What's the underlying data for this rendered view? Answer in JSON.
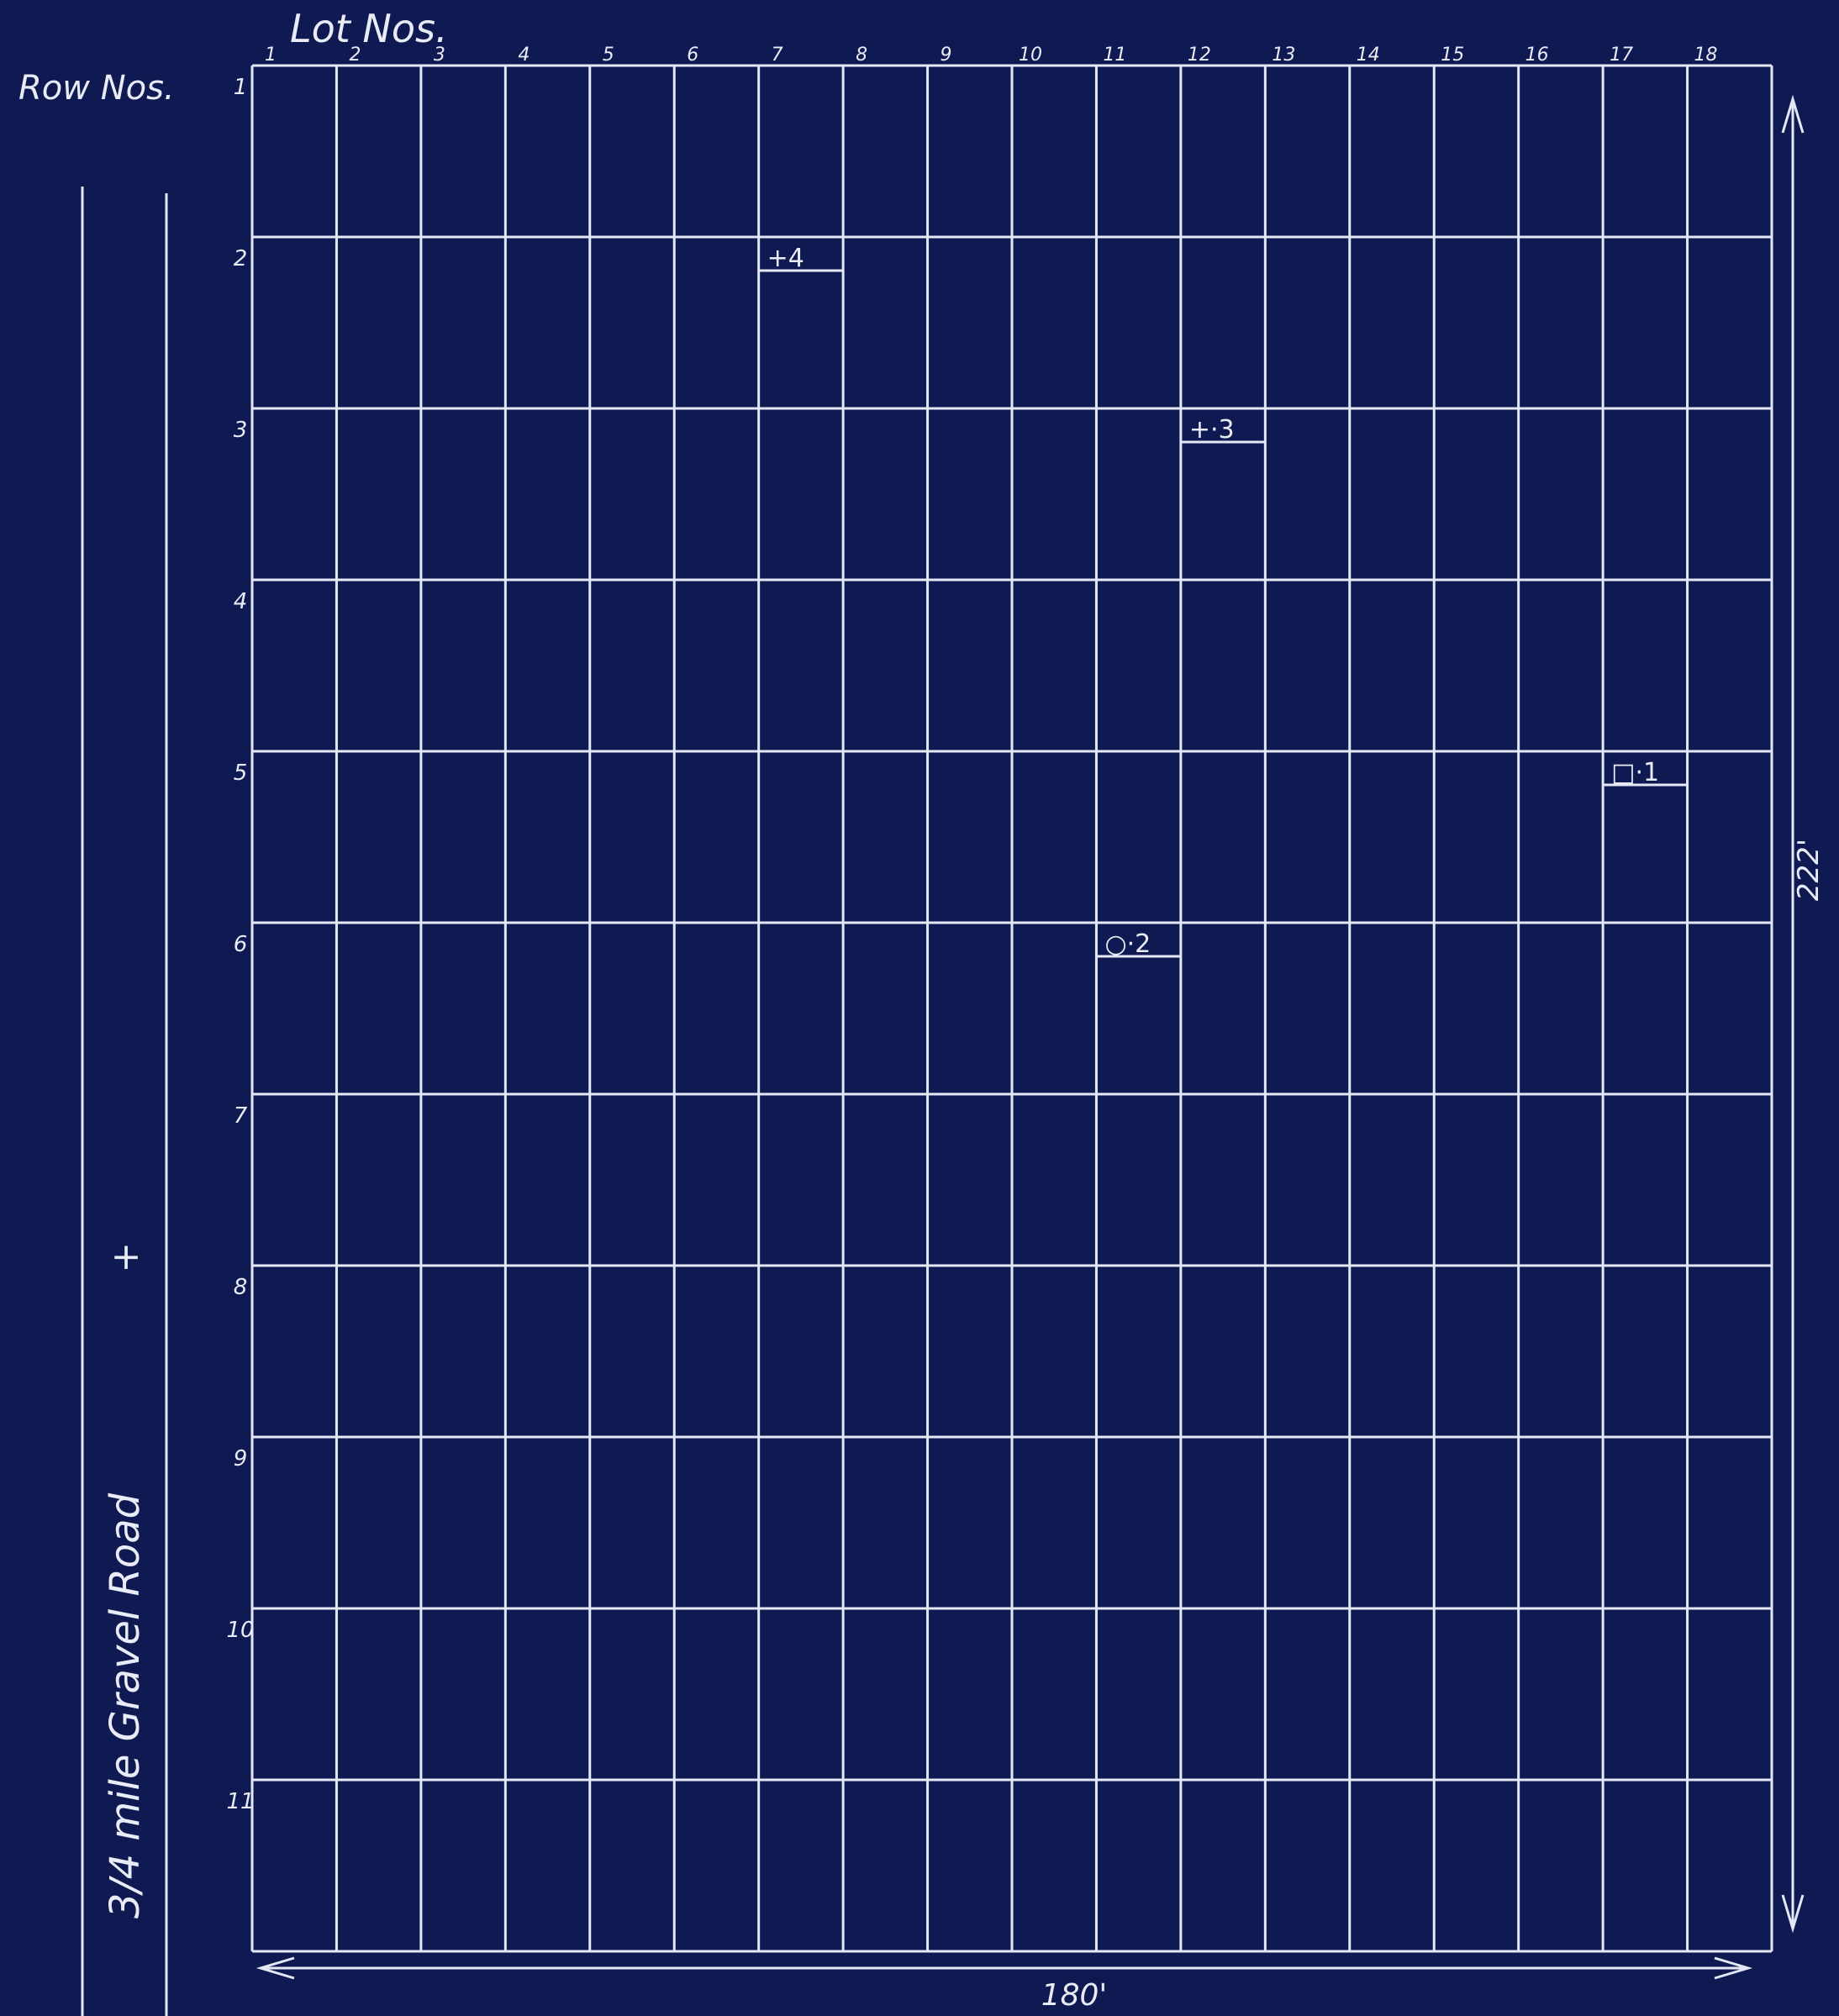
{
  "header": {
    "lot_title": "Lot Nos.",
    "row_title": "Row Nos."
  },
  "lots": [
    "1",
    "2",
    "3",
    "4",
    "5",
    "6",
    "7",
    "8",
    "9",
    "10",
    "11",
    "12",
    "13",
    "14",
    "15",
    "16",
    "17",
    "18"
  ],
  "rows": [
    "1",
    "2",
    "3",
    "4",
    "5",
    "6",
    "7",
    "8",
    "9",
    "10",
    "11"
  ],
  "markers": [
    {
      "label": "+4",
      "row": 2,
      "lot": 7
    },
    {
      "label": "+·3",
      "row": 3,
      "lot": 12
    },
    {
      "label": "□·1",
      "row": 5,
      "lot": 17
    },
    {
      "label": "○·2",
      "row": 6,
      "lot": 11
    }
  ],
  "road": {
    "label": "3/4 mile Gravel Road",
    "cross_symbol": "+"
  },
  "dimensions": {
    "width_label": "180'",
    "height_label": "222'"
  },
  "colors": {
    "paper": "#0f1a52",
    "ink": "#e9ecf7"
  }
}
